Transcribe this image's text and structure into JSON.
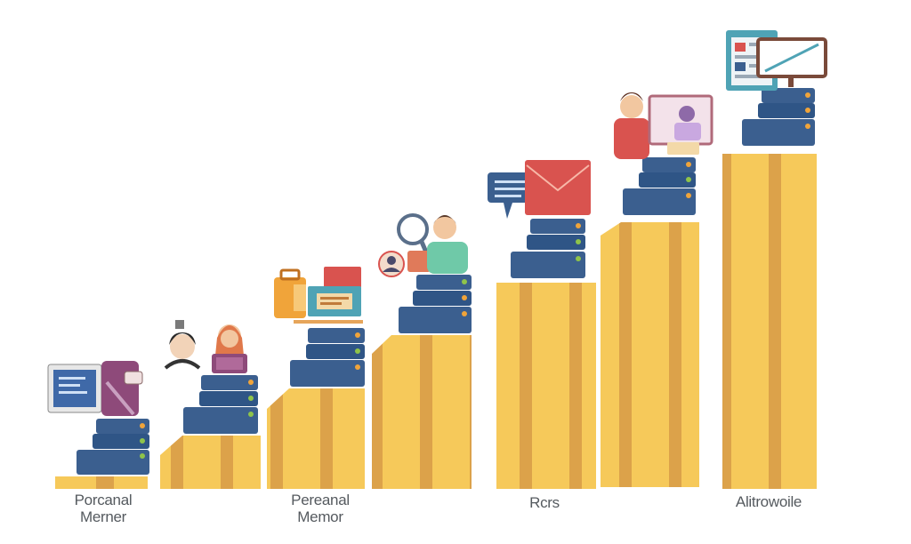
{
  "colors": {
    "gold_light": "#f6c95a",
    "gold_dark": "#d99a3a",
    "server_blue": "#3b5f8f",
    "server_blue_dark": "#2a4770",
    "led_green": "#8fc44a",
    "led_orange": "#f0a43a",
    "accent_red": "#d9534f",
    "accent_teal": "#4fa3b5",
    "label_gray": "#555a5f"
  },
  "labels": {
    "step1": "Porcanal\nMerner",
    "step3": "Pereanal\nMemor",
    "step5": "Rcrs",
    "step7": "Alitrowoile"
  },
  "icons": {
    "step1": [
      "monitor-icon",
      "phone-icon"
    ],
    "step2": [
      "person-icon",
      "person-laptop-icon"
    ],
    "step3": [
      "briefcase-icon",
      "presentation-board-icon"
    ],
    "step4": [
      "magnifier-icon",
      "avatar-icon",
      "person-icon"
    ],
    "step5": [
      "chat-bubble-icon",
      "email-icon"
    ],
    "step6": [
      "person-icon",
      "profile-card-icon"
    ],
    "step7": [
      "dashboard-icon",
      "chart-monitor-icon"
    ]
  }
}
